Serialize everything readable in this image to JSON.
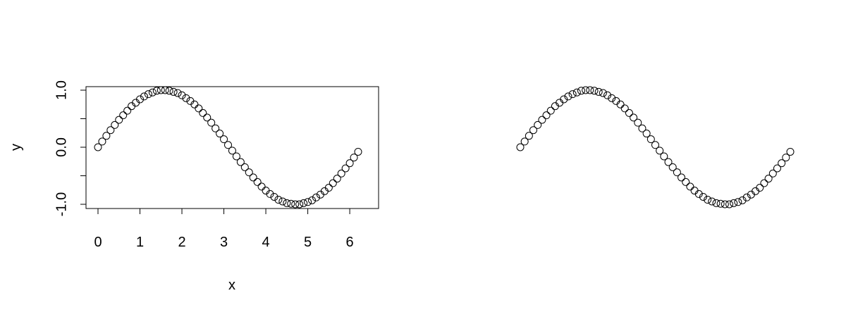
{
  "chart_data": [
    {
      "type": "scatter",
      "xlabel": "x",
      "ylabel": "y",
      "axes": true,
      "box": true,
      "grid": false,
      "marker": "open-circle",
      "color": "#000000",
      "xlim": [
        0,
        6.2
      ],
      "ylim": [
        -1,
        1
      ],
      "x_ticks": [
        "0",
        "1",
        "2",
        "3",
        "4",
        "5",
        "6"
      ],
      "y_ticks": [
        "-1.0",
        "0.0",
        "1.0"
      ],
      "x": [
        0,
        0.1,
        0.2,
        0.3,
        0.4,
        0.5,
        0.6,
        0.7,
        0.8,
        0.9,
        1.0,
        1.1,
        1.2,
        1.3,
        1.4,
        1.5,
        1.6,
        1.7,
        1.8,
        1.9,
        2.0,
        2.1,
        2.2,
        2.3,
        2.4,
        2.5,
        2.6,
        2.7,
        2.8,
        2.9,
        3.0,
        3.1,
        3.2,
        3.3,
        3.4,
        3.5,
        3.6,
        3.7,
        3.8,
        3.9,
        4.0,
        4.1,
        4.2,
        4.3,
        4.4,
        4.5,
        4.6,
        4.7,
        4.8,
        4.9,
        5.0,
        5.1,
        5.2,
        5.3,
        5.4,
        5.5,
        5.6,
        5.7,
        5.8,
        5.9,
        6.0,
        6.1,
        6.2
      ],
      "y": [
        0,
        0.1,
        0.2,
        0.3,
        0.39,
        0.48,
        0.56,
        0.64,
        0.72,
        0.78,
        0.84,
        0.89,
        0.93,
        0.96,
        0.99,
        1.0,
        1.0,
        0.99,
        0.97,
        0.95,
        0.91,
        0.86,
        0.81,
        0.75,
        0.68,
        0.6,
        0.52,
        0.43,
        0.33,
        0.24,
        0.14,
        0.04,
        -0.06,
        -0.16,
        -0.26,
        -0.35,
        -0.44,
        -0.53,
        -0.61,
        -0.69,
        -0.76,
        -0.82,
        -0.87,
        -0.92,
        -0.95,
        -0.98,
        -0.99,
        -1.0,
        -1.0,
        -0.98,
        -0.96,
        -0.93,
        -0.88,
        -0.83,
        -0.77,
        -0.71,
        -0.63,
        -0.55,
        -0.46,
        -0.37,
        -0.28,
        -0.18,
        -0.08
      ]
    },
    {
      "type": "scatter",
      "xlabel": "",
      "ylabel": "",
      "axes": false,
      "box": false,
      "grid": false,
      "marker": "open-circle",
      "color": "#000000",
      "xlim": [
        0,
        6.2
      ],
      "ylim": [
        -1,
        1
      ],
      "x": [
        0,
        0.1,
        0.2,
        0.3,
        0.4,
        0.5,
        0.6,
        0.7,
        0.8,
        0.9,
        1.0,
        1.1,
        1.2,
        1.3,
        1.4,
        1.5,
        1.6,
        1.7,
        1.8,
        1.9,
        2.0,
        2.1,
        2.2,
        2.3,
        2.4,
        2.5,
        2.6,
        2.7,
        2.8,
        2.9,
        3.0,
        3.1,
        3.2,
        3.3,
        3.4,
        3.5,
        3.6,
        3.7,
        3.8,
        3.9,
        4.0,
        4.1,
        4.2,
        4.3,
        4.4,
        4.5,
        4.6,
        4.7,
        4.8,
        4.9,
        5.0,
        5.1,
        5.2,
        5.3,
        5.4,
        5.5,
        5.6,
        5.7,
        5.8,
        5.9,
        6.0,
        6.1,
        6.2
      ],
      "y": [
        0,
        0.1,
        0.2,
        0.3,
        0.39,
        0.48,
        0.56,
        0.64,
        0.72,
        0.78,
        0.84,
        0.89,
        0.93,
        0.96,
        0.99,
        1.0,
        1.0,
        0.99,
        0.97,
        0.95,
        0.91,
        0.86,
        0.81,
        0.75,
        0.68,
        0.6,
        0.52,
        0.43,
        0.33,
        0.24,
        0.14,
        0.04,
        -0.06,
        -0.16,
        -0.26,
        -0.35,
        -0.44,
        -0.53,
        -0.61,
        -0.69,
        -0.76,
        -0.82,
        -0.87,
        -0.92,
        -0.95,
        -0.98,
        -0.99,
        -1.0,
        -1.0,
        -0.98,
        -0.96,
        -0.93,
        -0.88,
        -0.83,
        -0.77,
        -0.71,
        -0.63,
        -0.55,
        -0.46,
        -0.37,
        -0.28,
        -0.18,
        -0.08
      ]
    }
  ]
}
